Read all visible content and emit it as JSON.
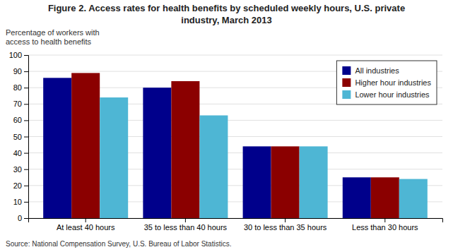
{
  "chart_data": {
    "type": "bar",
    "title": "Figure 2. Access rates for health benefits by scheduled weekly hours, U.S. private\nindustry, March 2013",
    "y_label": "Percentage of workers with\naccess to health benefits",
    "annotations": [
      "Source: National Compensation Survey, U.S. Bureau of Labor Statistics."
    ],
    "categories": [
      "At least 40 hours",
      "35 to less than 40 hours",
      "30 to less than 35 hours",
      "Less than 30 hours"
    ],
    "series": [
      {
        "name": "All industries",
        "color": "#00008B",
        "values": [
          86,
          80,
          44,
          25
        ]
      },
      {
        "name": "Higher hour industries",
        "color": "#8B0000",
        "values": [
          89,
          84,
          44,
          25
        ]
      },
      {
        "name": "Lower hour industries",
        "color": "#4EB6D4",
        "values": [
          74,
          63,
          44,
          24
        ]
      }
    ],
    "ylim": [
      0,
      100
    ],
    "yticks": [
      0,
      10,
      20,
      30,
      40,
      50,
      60,
      70,
      80,
      90,
      100
    ],
    "grid": true,
    "legend": "upper right"
  }
}
